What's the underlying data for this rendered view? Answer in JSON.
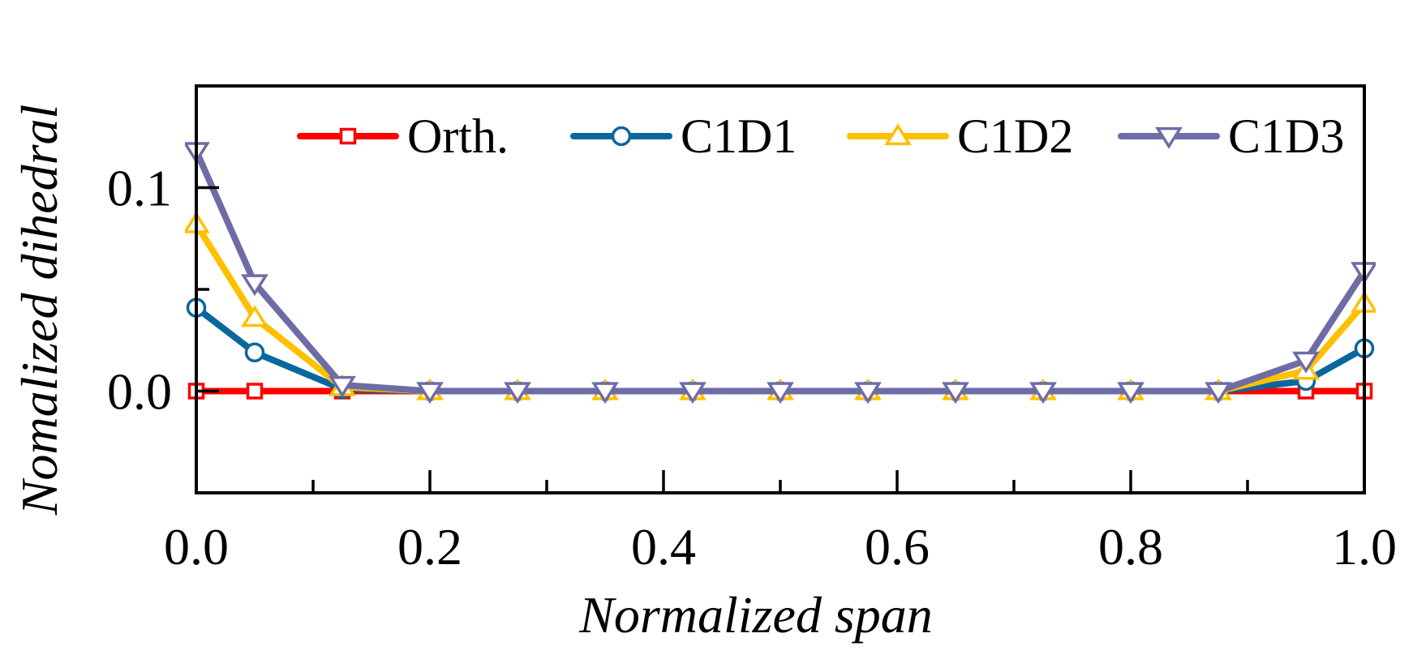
{
  "chart_data": {
    "type": "line",
    "title": "",
    "xlabel": "Normalized span",
    "ylabel": "Nomalized dihedral",
    "xlim": [
      0,
      1
    ],
    "ylim": [
      -0.05,
      0.15
    ],
    "xticks": [
      0.0,
      0.2,
      0.4,
      0.6,
      0.8,
      1.0
    ],
    "xtick_labels": [
      "0.0",
      "0.2",
      "0.4",
      "0.6",
      "0.8",
      "1.0"
    ],
    "xminor_ticks": [
      0.1,
      0.3,
      0.5,
      0.7,
      0.9
    ],
    "yticks": [
      0.0,
      0.1
    ],
    "ytick_labels": [
      "0.0",
      "0.1"
    ],
    "yminor_ticks": [
      0.05
    ],
    "grid": false,
    "legend_position": "top-right",
    "x": [
      0.0,
      0.05,
      0.125,
      0.2,
      0.275,
      0.35,
      0.425,
      0.5,
      0.575,
      0.65,
      0.725,
      0.8,
      0.875,
      0.95,
      1.0
    ],
    "series": [
      {
        "name": "Orth.",
        "color": "#ff0000",
        "marker": "square",
        "values": [
          0.0,
          0.0,
          0.0,
          0.0,
          0.0,
          0.0,
          0.0,
          0.0,
          0.0,
          0.0,
          0.0,
          0.0,
          0.0,
          0.0,
          0.0
        ]
      },
      {
        "name": "C1D1",
        "color": "#0a679e",
        "marker": "circle",
        "values": [
          0.041,
          0.019,
          0.001,
          0.0,
          0.0,
          0.0,
          0.0,
          0.0,
          0.0,
          0.0,
          0.0,
          0.0,
          0.0,
          0.005,
          0.021
        ]
      },
      {
        "name": "C1D2",
        "color": "#ffc000",
        "marker": "triangle-up",
        "values": [
          0.082,
          0.036,
          0.002,
          0.0,
          0.0,
          0.0,
          0.0,
          0.0,
          0.0,
          0.0,
          0.0,
          0.0,
          0.0,
          0.01,
          0.043
        ]
      },
      {
        "name": "C1D3",
        "color": "#6e6ca6",
        "marker": "triangle-down",
        "values": [
          0.118,
          0.053,
          0.003,
          0.0,
          0.0,
          0.0,
          0.0,
          0.0,
          0.0,
          0.0,
          0.0,
          0.0,
          0.0,
          0.015,
          0.059
        ]
      }
    ]
  }
}
